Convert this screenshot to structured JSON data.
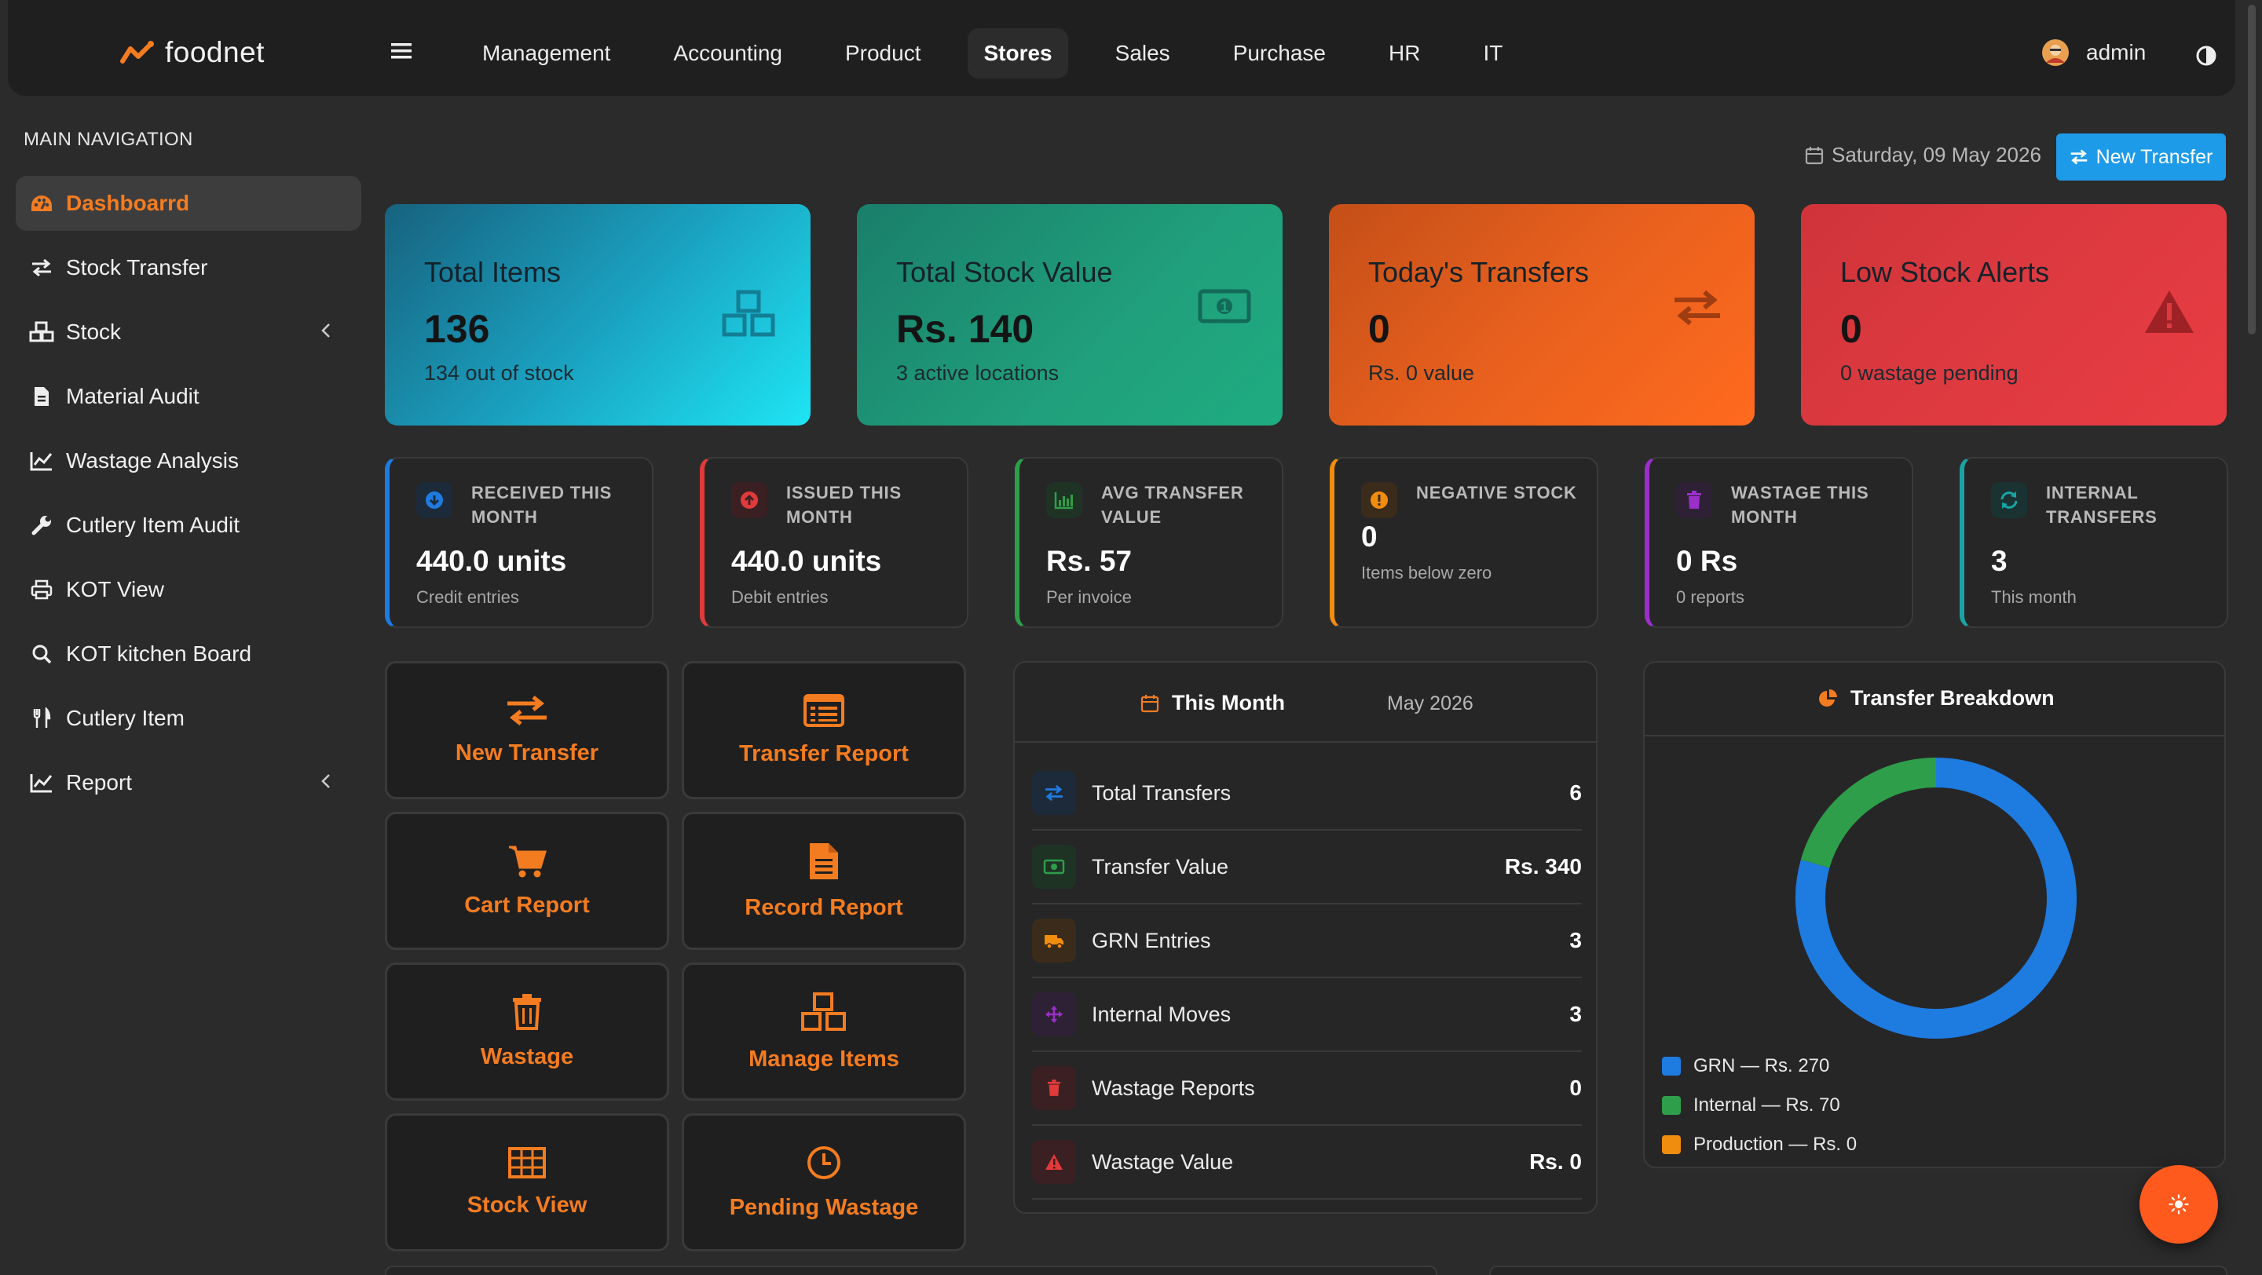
{
  "brand": {
    "name": "foodnet",
    "accent": "#f47c20"
  },
  "topnav": {
    "items": [
      {
        "label": "Management"
      },
      {
        "label": "Accounting"
      },
      {
        "label": "Product"
      },
      {
        "label": "Stores",
        "active": true
      },
      {
        "label": "Sales"
      },
      {
        "label": "Purchase"
      },
      {
        "label": "HR"
      },
      {
        "label": "IT"
      }
    ],
    "user": "admin"
  },
  "sidebar": {
    "title": "MAIN NAVIGATION",
    "items": [
      {
        "label": "Dashboarrd",
        "icon": "palette-icon",
        "active": true
      },
      {
        "label": "Stock Transfer",
        "icon": "exchange-icon"
      },
      {
        "label": "Stock",
        "icon": "cubes-icon",
        "has_children": true
      },
      {
        "label": "Material Audit",
        "icon": "file-icon"
      },
      {
        "label": "Wastage Analysis",
        "icon": "line-chart-icon"
      },
      {
        "label": "Cutlery Item Audit",
        "icon": "wrench-icon"
      },
      {
        "label": "KOT View",
        "icon": "print-icon"
      },
      {
        "label": "KOT kitchen Board",
        "icon": "search-icon"
      },
      {
        "label": "Cutlery Item",
        "icon": "utensils-icon"
      },
      {
        "label": "Report",
        "icon": "line-chart-icon",
        "has_children": true
      }
    ]
  },
  "header": {
    "date": "Saturday, 09 May 2026",
    "new_transfer_label": "New Transfer"
  },
  "stats": [
    {
      "title": "Total Items",
      "value": "136",
      "sub": "134 out of stock",
      "icon": "cubes-icon"
    },
    {
      "title": "Total Stock Value",
      "value": "Rs. 140",
      "sub": "3 active locations",
      "icon": "money-icon"
    },
    {
      "title": "Today's Transfers",
      "value": "0",
      "sub": "Rs. 0 value",
      "icon": "exchange-icon"
    },
    {
      "title": "Low Stock Alerts",
      "value": "0",
      "sub": "0 wastage pending",
      "icon": "warning-icon"
    }
  ],
  "mini": [
    {
      "label": "RECEIVED THIS MONTH",
      "value": "440.0 units",
      "sub": "Credit entries",
      "color": "#1e7be0",
      "icon": "arrow-down-circle-icon"
    },
    {
      "label": "ISSUED THIS MONTH",
      "value": "440.0 units",
      "sub": "Debit entries",
      "color": "#e03a3a",
      "icon": "arrow-up-circle-icon"
    },
    {
      "label": "AVG TRANSFER VALUE",
      "value": "Rs. 57",
      "sub": "Per invoice",
      "color": "#2e9e4a",
      "icon": "bar-chart-icon"
    },
    {
      "label": "NEGATIVE STOCK",
      "value": "0",
      "sub": "Items below zero",
      "color": "#f08c0e",
      "icon": "exclamation-circle-icon"
    },
    {
      "label": "WASTAGE THIS MONTH",
      "value": "0 Rs",
      "sub": "0 reports",
      "color": "#9b2fc9",
      "icon": "trash-icon"
    },
    {
      "label": "INTERNAL TRANSFERS",
      "value": "3",
      "sub": "This month",
      "color": "#1aa3a3",
      "icon": "sync-icon"
    }
  ],
  "actions": [
    {
      "label": "New Transfer",
      "icon": "exchange-icon"
    },
    {
      "label": "Transfer Report",
      "icon": "list-alt-icon"
    },
    {
      "label": "Cart Report",
      "icon": "cart-icon"
    },
    {
      "label": "Record Report",
      "icon": "file-text-icon"
    },
    {
      "label": "Wastage",
      "icon": "trash-icon"
    },
    {
      "label": "Manage Items",
      "icon": "cubes-icon"
    },
    {
      "label": "Stock View",
      "icon": "table-icon"
    },
    {
      "label": "Pending Wastage",
      "icon": "clock-icon"
    }
  ],
  "this_month": {
    "title": "This Month",
    "period": "May 2026",
    "rows": [
      {
        "label": "Total Transfers",
        "value": "6",
        "icon": "exchange-icon",
        "color": "#1e7be0"
      },
      {
        "label": "Transfer Value",
        "value": "Rs. 340",
        "icon": "money-icon",
        "color": "#2e9e4a"
      },
      {
        "label": "GRN Entries",
        "value": "3",
        "icon": "truck-icon",
        "color": "#f08c0e"
      },
      {
        "label": "Internal Moves",
        "value": "3",
        "icon": "arrows-icon",
        "color": "#9b2fc9"
      },
      {
        "label": "Wastage Reports",
        "value": "0",
        "icon": "trash-icon",
        "color": "#e03a3a"
      },
      {
        "label": "Wastage Value",
        "value": "Rs. 0",
        "icon": "warning-icon",
        "color": "#e03a3a"
      }
    ]
  },
  "chart_data": {
    "type": "pie",
    "title": "Transfer Breakdown",
    "categories": [
      "GRN",
      "Internal",
      "Production"
    ],
    "values": [
      270,
      70,
      0
    ],
    "colors": [
      "#1e7be0",
      "#2e9e4a",
      "#f08c0e"
    ],
    "legend_labels": [
      "GRN — Rs. 270",
      "Internal — Rs. 70",
      "Production — Rs. 0"
    ],
    "donut": true,
    "legend": "bottom"
  }
}
